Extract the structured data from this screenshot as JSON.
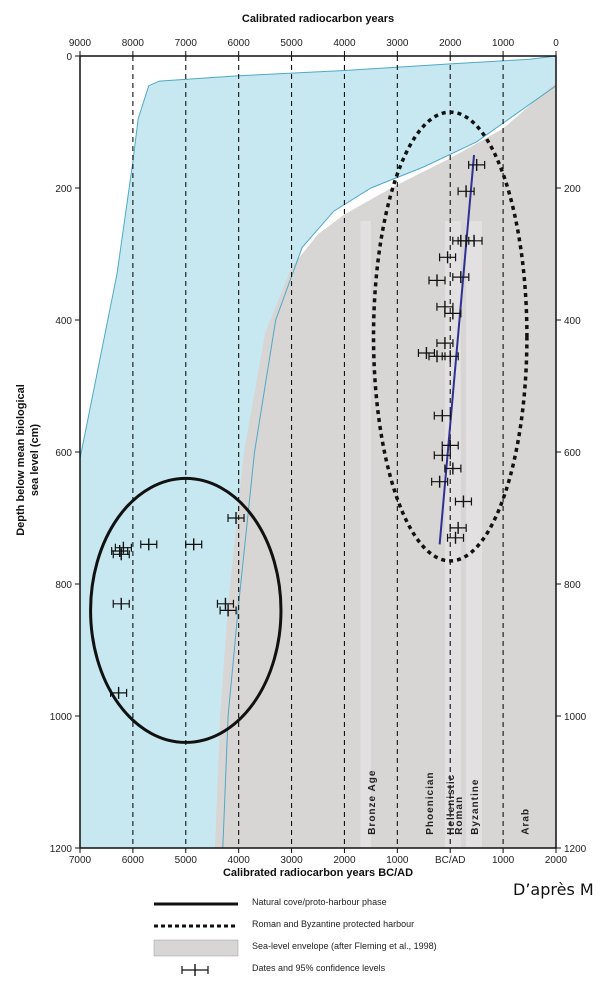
{
  "chart_data": {
    "type": "scatter",
    "title": "",
    "top_axis_label": "Calibrated radiocarbon years",
    "top_ticks": [
      "9000",
      "8000",
      "7000",
      "6000",
      "5000",
      "4000",
      "3000",
      "2000",
      "1000",
      "0"
    ],
    "xlabel": "Calibrated radiocarbon years BC/AD",
    "x_ticks": [
      "7000",
      "6000",
      "5000",
      "4000",
      "3000",
      "2000",
      "1000",
      "BC/AD",
      "1000",
      "2000"
    ],
    "ylabel": "Depth below mean biological sea level (cm)",
    "ylabel_lines": [
      "Depth below mean biological",
      "sea level (cm)"
    ],
    "y_ticks": [
      "0",
      "200",
      "400",
      "600",
      "800",
      "1000",
      "1200"
    ],
    "right_y_ticks": [
      "200",
      "400",
      "600",
      "800",
      "1000",
      "1200"
    ],
    "xlim": [
      -7000,
      2000
    ],
    "ylim": [
      0,
      1200
    ],
    "x_note": "negative = BC, positive = AD",
    "grid": "dashed vertical lines every 1000 years",
    "periods": [
      "Bronze Age",
      "Phoenician",
      "Hellenistic",
      "Roman",
      "Byzantine",
      "Arab"
    ],
    "envelope_outer": [
      [
        -7000,
        610
      ],
      [
        -6700,
        490
      ],
      [
        -6300,
        330
      ],
      [
        -6000,
        160
      ],
      [
        -5900,
        95
      ],
      [
        -5700,
        45
      ],
      [
        -5500,
        38
      ],
      [
        -4000,
        30
      ],
      [
        -2000,
        22
      ],
      [
        0,
        12
      ],
      [
        1500,
        5
      ],
      [
        2000,
        0
      ]
    ],
    "envelope_inner": [
      [
        -4300,
        1200
      ],
      [
        -4200,
        1000
      ],
      [
        -4000,
        830
      ],
      [
        -3700,
        600
      ],
      [
        -3300,
        400
      ],
      [
        -2800,
        290
      ],
      [
        -2200,
        235
      ],
      [
        -1500,
        200
      ],
      [
        -500,
        168
      ],
      [
        500,
        130
      ],
      [
        2000,
        45
      ]
    ],
    "grey_envelope": [
      [
        -4450,
        1200
      ],
      [
        -4350,
        1000
      ],
      [
        -4200,
        830
      ],
      [
        -3900,
        600
      ],
      [
        -3500,
        420
      ],
      [
        -3000,
        320
      ],
      [
        -2500,
        270
      ],
      [
        -2000,
        240
      ],
      [
        -1000,
        195
      ],
      [
        0,
        155
      ],
      [
        1000,
        110
      ],
      [
        2000,
        40
      ]
    ],
    "points": [
      {
        "x": -6250,
        "y": 750
      },
      {
        "x": -6180,
        "y": 745
      },
      {
        "x": -6220,
        "y": 755
      },
      {
        "x": -5700,
        "y": 740
      },
      {
        "x": -4850,
        "y": 740
      },
      {
        "x": -4050,
        "y": 700
      },
      {
        "x": -4250,
        "y": 830
      },
      {
        "x": -4200,
        "y": 840
      },
      {
        "x": -6220,
        "y": 830
      },
      {
        "x": -6270,
        "y": 965
      },
      {
        "x": 500,
        "y": 165
      },
      {
        "x": 300,
        "y": 205
      },
      {
        "x": 300,
        "y": 280
      },
      {
        "x": 450,
        "y": 280
      },
      {
        "x": 200,
        "y": 280
      },
      {
        "x": -50,
        "y": 305
      },
      {
        "x": 200,
        "y": 335
      },
      {
        "x": -250,
        "y": 340
      },
      {
        "x": -100,
        "y": 380
      },
      {
        "x": 50,
        "y": 390
      },
      {
        "x": -100,
        "y": 435
      },
      {
        "x": -450,
        "y": 450
      },
      {
        "x": -250,
        "y": 455
      },
      {
        "x": 0,
        "y": 455
      },
      {
        "x": -150,
        "y": 545
      },
      {
        "x": -150,
        "y": 605
      },
      {
        "x": 0,
        "y": 590
      },
      {
        "x": 50,
        "y": 625
      },
      {
        "x": -200,
        "y": 645
      },
      {
        "x": 250,
        "y": 675
      },
      {
        "x": 150,
        "y": 715
      },
      {
        "x": 100,
        "y": 730
      }
    ],
    "trend_line": [
      [
        -200,
        740
      ],
      [
        450,
        150
      ]
    ],
    "ellipses": [
      {
        "cx": -5000,
        "cy": 840,
        "rx": 1800,
        "ry": 200,
        "style": "solid"
      },
      {
        "cx": 0,
        "cy": 425,
        "rx": 1450,
        "ry": 340,
        "style": "dotted"
      }
    ],
    "colors": {
      "envelope_blue": "#c7e8f1",
      "envelope_edge": "#4fa9c5",
      "grey": "#d8d5d5",
      "trend": "#2e3192",
      "ink": "#111111"
    }
  },
  "legend": [
    {
      "type": "solid",
      "label": "Natural cove/proto-harbour phase"
    },
    {
      "type": "dashed",
      "label": "Roman and Byzantine protected harbour"
    },
    {
      "type": "grey",
      "label": "Sea-level envelope (after Fleming et al., 1998)"
    },
    {
      "type": "errorbar",
      "label": "Dates and 95% confidence levels"
    }
  ],
  "source_text": "D’après M"
}
